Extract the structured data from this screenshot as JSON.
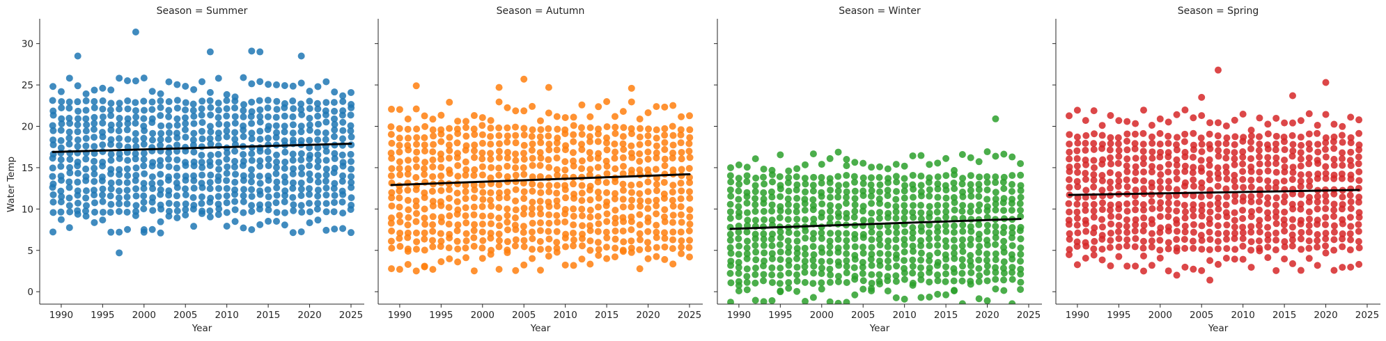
{
  "chart_data": {
    "type": "scatter",
    "facet_variable": "Season",
    "xlabel": "Year",
    "ylabel": "Water Temp",
    "xlim": [
      1987.4,
      2026.6
    ],
    "ylim": [
      -1.5,
      33.0
    ],
    "xticks": [
      1990,
      1995,
      2000,
      2005,
      2010,
      2015,
      2020,
      2025
    ],
    "yticks": [
      0,
      5,
      10,
      15,
      20,
      25,
      30
    ],
    "x_range": [
      1989,
      2025
    ],
    "points_per_year": 16,
    "panels": [
      {
        "title": "Season = Summer",
        "season": "Summer",
        "color": "#1f77b4",
        "x_max": 2025,
        "band_low": 9.5,
        "band_high": 23.5,
        "regression": {
          "x": [
            1989,
            2025
          ],
          "y": [
            16.9,
            17.9
          ]
        },
        "outliers": [
          {
            "x": 1999,
            "y": 31.4
          },
          {
            "x": 1997,
            "y": 4.7
          },
          {
            "x": 1992,
            "y": 28.5
          },
          {
            "x": 2008,
            "y": 29.0
          },
          {
            "x": 2013,
            "y": 29.1
          },
          {
            "x": 2014,
            "y": 29.0
          },
          {
            "x": 2019,
            "y": 28.5
          },
          {
            "x": 2000,
            "y": 7.5
          },
          {
            "x": 2002,
            "y": 7.1
          }
        ]
      },
      {
        "title": "Season = Autumn",
        "season": "Autumn",
        "color": "#ff7f0e",
        "x_max": 2025,
        "band_low": 5.0,
        "band_high": 20.5,
        "regression": {
          "x": [
            1989,
            2025
          ],
          "y": [
            12.9,
            14.2
          ]
        },
        "outliers": [
          {
            "x": 1992,
            "y": 24.9
          },
          {
            "x": 2005,
            "y": 25.7
          },
          {
            "x": 2002,
            "y": 24.7
          },
          {
            "x": 2018,
            "y": 24.6
          },
          {
            "x": 2008,
            "y": 24.7
          },
          {
            "x": 1993,
            "y": 3.0
          },
          {
            "x": 1991,
            "y": 3.3
          }
        ]
      },
      {
        "title": "Season = Winter",
        "season": "Winter",
        "color": "#2ca02c",
        "x_max": 2024,
        "band_low": 1.0,
        "band_high": 14.5,
        "regression": {
          "x": [
            1989,
            2024
          ],
          "y": [
            7.6,
            8.8
          ]
        },
        "outliers": [
          {
            "x": 2021,
            "y": 20.9
          },
          {
            "x": 2003,
            "y": 16.0
          },
          {
            "x": 1990,
            "y": 0.1
          },
          {
            "x": 1995,
            "y": 0.0
          },
          {
            "x": 2006,
            "y": 0.1
          },
          {
            "x": 2016,
            "y": 0.1
          }
        ]
      },
      {
        "title": "Season = Spring",
        "season": "Spring",
        "color": "#d62728",
        "x_max": 2024,
        "band_low": 5.0,
        "band_high": 19.5,
        "regression": {
          "x": [
            1989,
            2024
          ],
          "y": [
            11.7,
            12.3
          ]
        },
        "outliers": [
          {
            "x": 2007,
            "y": 26.8
          },
          {
            "x": 2020,
            "y": 25.3
          },
          {
            "x": 2006,
            "y": 1.4
          },
          {
            "x": 2002,
            "y": 2.0
          },
          {
            "x": 1998,
            "y": 2.5
          },
          {
            "x": 2005,
            "y": 23.5
          },
          {
            "x": 2016,
            "y": 23.7
          }
        ]
      }
    ]
  }
}
